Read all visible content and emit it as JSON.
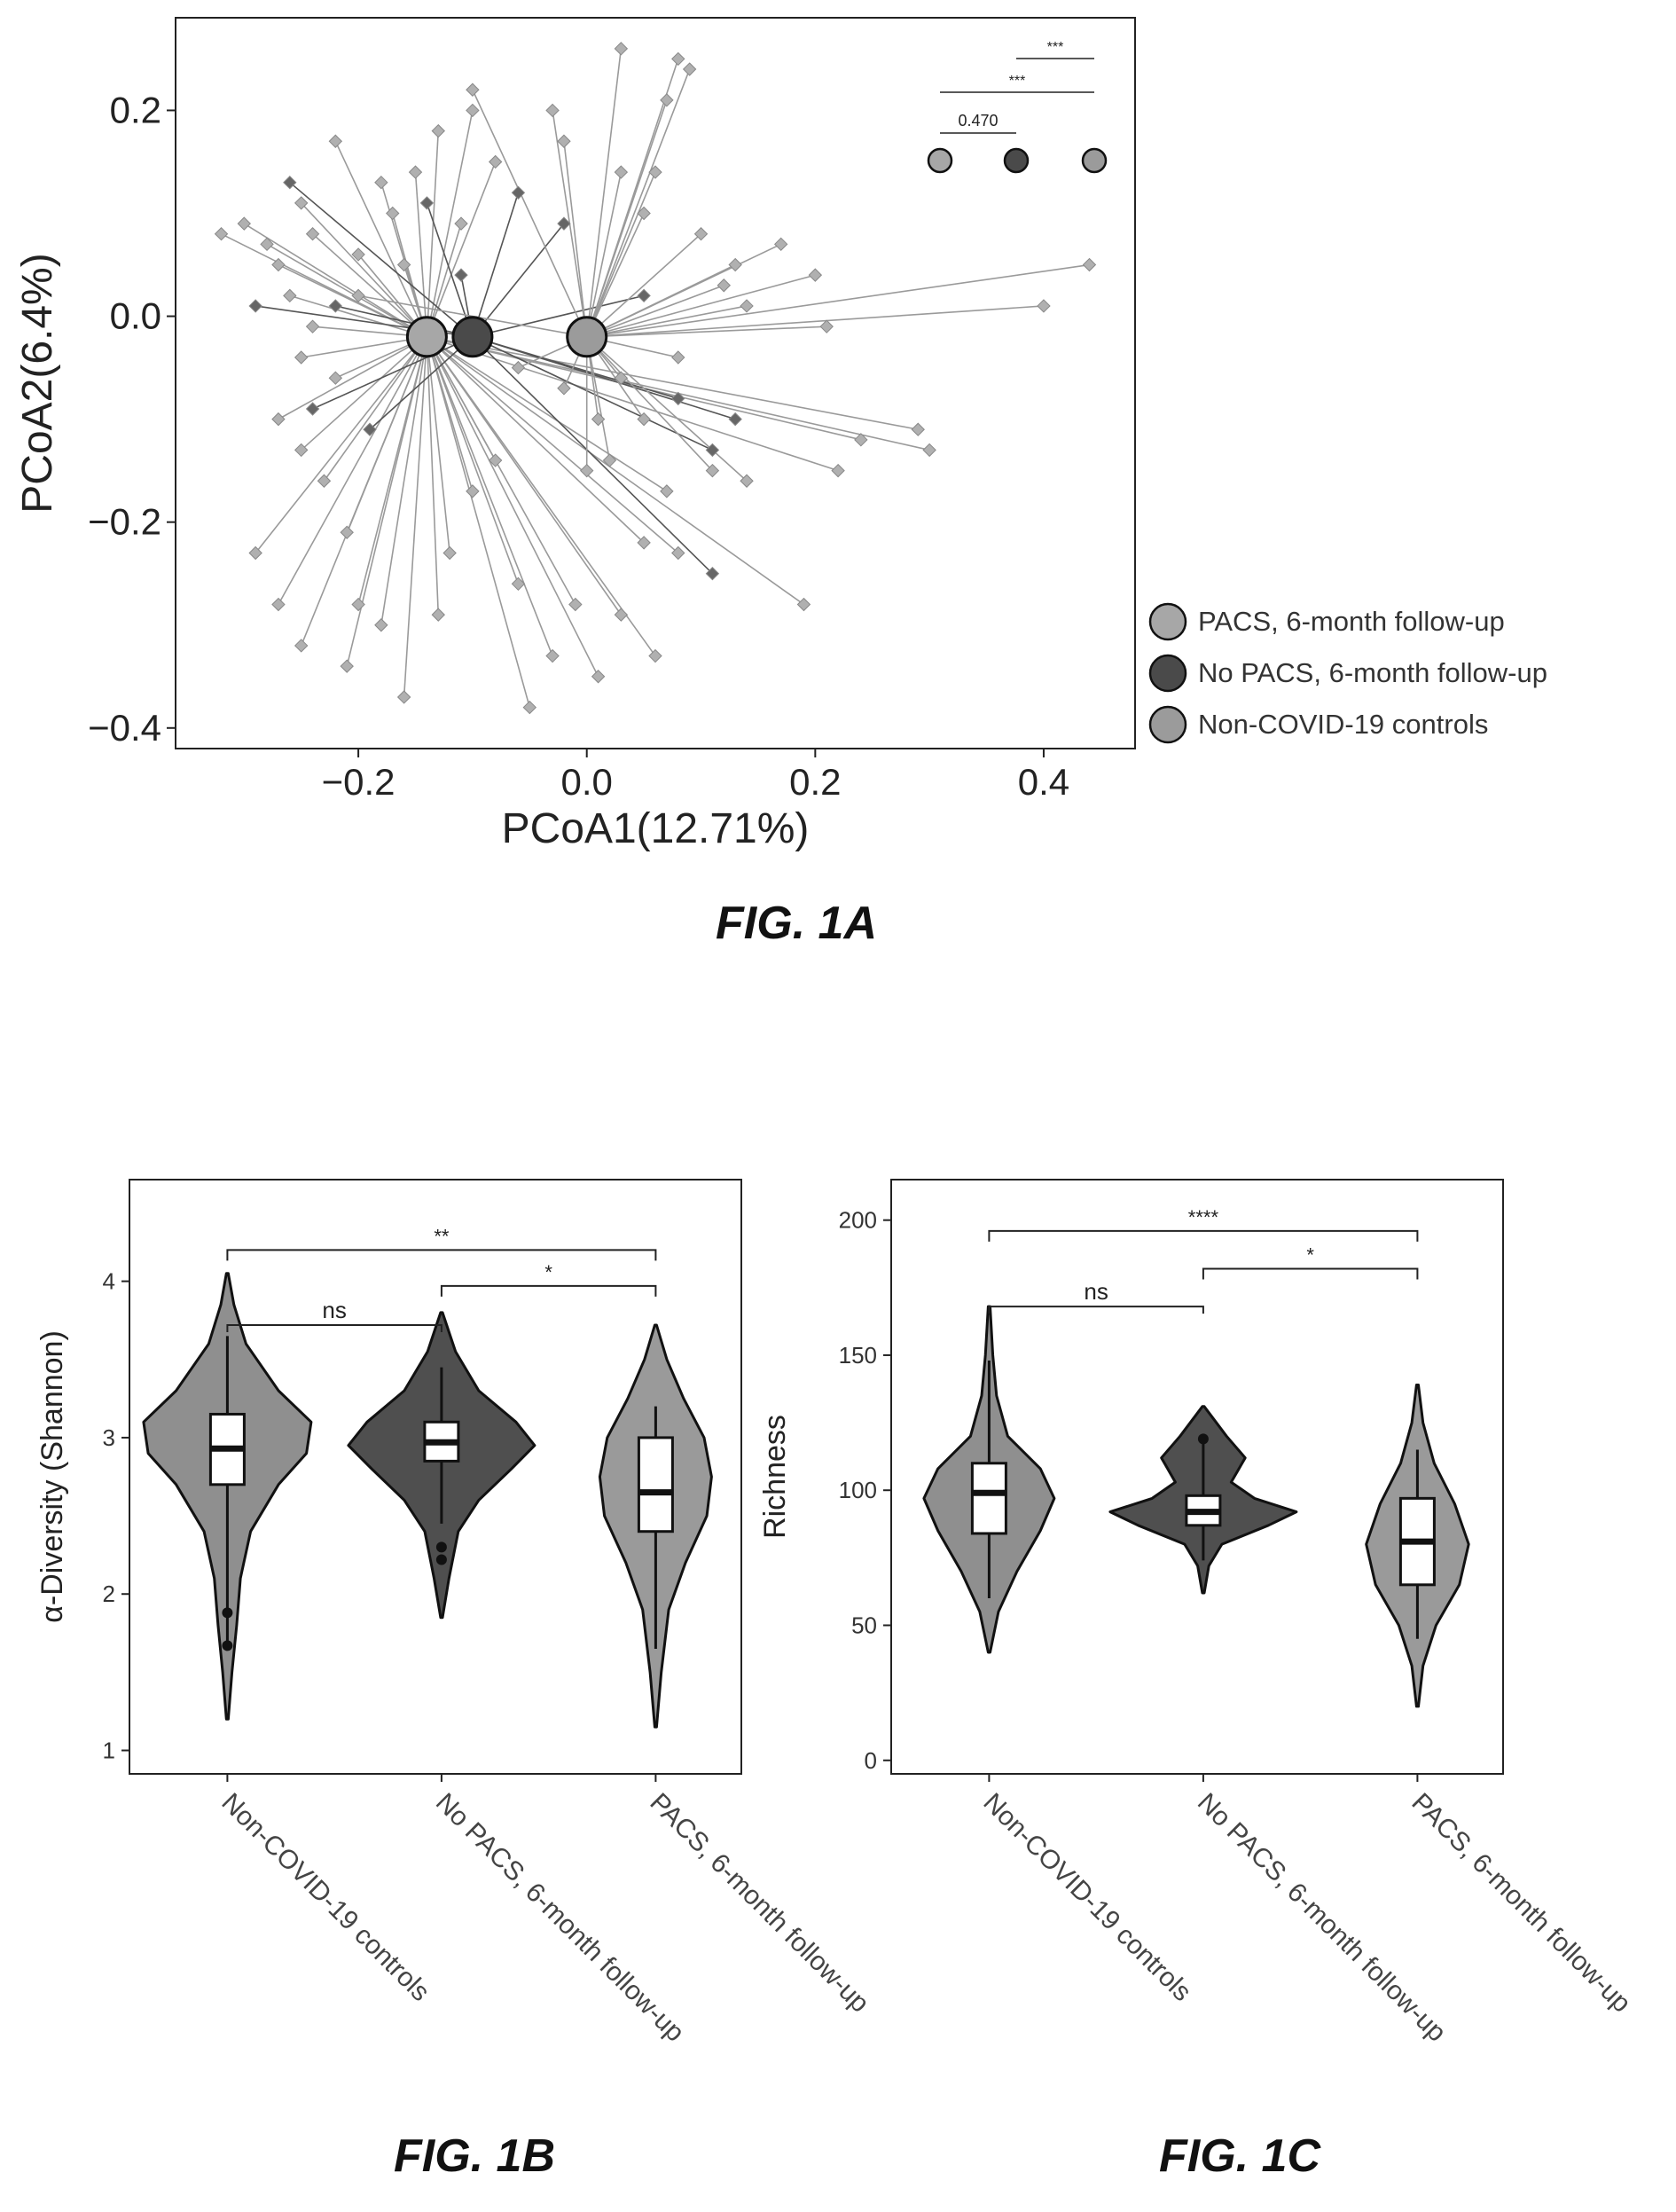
{
  "colors": {
    "pacs": "#a7a7a7",
    "no_pacs": "#4a4a4a",
    "controls": "#9b9b9b",
    "point": "#b0b0b0",
    "segment": "#9a9a9a",
    "axis": "#222222",
    "box": "#ffffff"
  },
  "figure_labels": {
    "a": "FIG. 1A",
    "b": "FIG. 1B",
    "c": "FIG. 1C"
  },
  "chart_data": [
    {
      "id": "fig1a",
      "type": "scatter",
      "xlabel": "PCoA1(12.71%)",
      "ylabel": "PCoA2(6.4%)",
      "xlim": [
        -0.36,
        0.48
      ],
      "ylim": [
        -0.42,
        0.29
      ],
      "xticks": [
        -0.2,
        0.0,
        0.2,
        0.4
      ],
      "xtick_labels": [
        "−0.2",
        "0.0",
        "0.2",
        "0.4"
      ],
      "yticks": [
        -0.4,
        -0.2,
        0.0,
        0.2
      ],
      "ytick_labels": [
        "−0.4",
        "−0.2",
        "0.0",
        "0.2"
      ],
      "grid": false,
      "legend_position": "right-bottom",
      "series": [
        {
          "name": "PACS, 6-month follow-up",
          "centroid": [
            -0.14,
            -0.02
          ],
          "points": [
            [
              -0.32,
              0.08
            ],
            [
              -0.3,
              0.09
            ],
            [
              -0.28,
              0.07
            ],
            [
              -0.27,
              0.05
            ],
            [
              -0.25,
              0.11
            ],
            [
              -0.24,
              0.08
            ],
            [
              -0.26,
              0.02
            ],
            [
              -0.24,
              -0.01
            ],
            [
              -0.25,
              -0.04
            ],
            [
              -0.22,
              -0.06
            ],
            [
              -0.27,
              -0.1
            ],
            [
              -0.25,
              -0.13
            ],
            [
              -0.23,
              -0.16
            ],
            [
              -0.21,
              -0.21
            ],
            [
              -0.29,
              -0.23
            ],
            [
              -0.27,
              -0.28
            ],
            [
              -0.25,
              -0.32
            ],
            [
              -0.21,
              -0.34
            ],
            [
              -0.2,
              -0.28
            ],
            [
              -0.18,
              -0.3
            ],
            [
              -0.16,
              -0.37
            ],
            [
              -0.13,
              -0.29
            ],
            [
              -0.12,
              -0.23
            ],
            [
              -0.1,
              -0.17
            ],
            [
              -0.08,
              -0.14
            ],
            [
              -0.06,
              -0.26
            ],
            [
              -0.05,
              -0.38
            ],
            [
              -0.03,
              -0.33
            ],
            [
              -0.01,
              -0.28
            ],
            [
              0.01,
              -0.35
            ],
            [
              0.03,
              -0.29
            ],
            [
              0.05,
              -0.22
            ],
            [
              0.07,
              -0.17
            ],
            [
              0.08,
              -0.23
            ],
            [
              0.06,
              -0.33
            ],
            [
              0.19,
              -0.28
            ],
            [
              0.22,
              -0.15
            ],
            [
              0.24,
              -0.12
            ],
            [
              0.29,
              -0.11
            ],
            [
              0.3,
              -0.13
            ],
            [
              -0.15,
              0.14
            ],
            [
              -0.13,
              0.18
            ],
            [
              -0.1,
              0.2
            ],
            [
              -0.08,
              0.15
            ],
            [
              -0.11,
              0.09
            ],
            [
              -0.18,
              0.13
            ],
            [
              -0.2,
              0.06
            ],
            [
              -0.16,
              0.05
            ],
            [
              -0.22,
              0.17
            ],
            [
              -0.17,
              0.1
            ]
          ]
        },
        {
          "name": "No PACS, 6-month follow-up",
          "centroid": [
            -0.1,
            -0.02
          ],
          "points": [
            [
              -0.26,
              0.13
            ],
            [
              -0.22,
              0.01
            ],
            [
              -0.29,
              0.01
            ],
            [
              -0.24,
              -0.09
            ],
            [
              -0.19,
              -0.11
            ],
            [
              -0.14,
              0.11
            ],
            [
              -0.11,
              0.04
            ],
            [
              0.05,
              0.02
            ],
            [
              0.11,
              -0.13
            ],
            [
              0.08,
              -0.08
            ],
            [
              0.13,
              -0.1
            ],
            [
              0.11,
              -0.25
            ],
            [
              -0.06,
              0.12
            ],
            [
              -0.02,
              0.09
            ]
          ]
        },
        {
          "name": "Non-COVID-19 controls",
          "centroid": [
            0.0,
            -0.02
          ],
          "points": [
            [
              0.03,
              0.26
            ],
            [
              0.08,
              0.25
            ],
            [
              0.09,
              0.24
            ],
            [
              0.07,
              0.21
            ],
            [
              -0.1,
              0.22
            ],
            [
              -0.03,
              0.2
            ],
            [
              -0.02,
              0.17
            ],
            [
              0.03,
              0.14
            ],
            [
              0.06,
              0.14
            ],
            [
              0.05,
              0.1
            ],
            [
              0.1,
              0.08
            ],
            [
              0.13,
              0.05
            ],
            [
              0.12,
              0.03
            ],
            [
              0.14,
              0.01
            ],
            [
              0.17,
              0.07
            ],
            [
              0.2,
              0.04
            ],
            [
              0.21,
              -0.01
            ],
            [
              0.44,
              0.05
            ],
            [
              0.4,
              0.01
            ],
            [
              0.08,
              -0.04
            ],
            [
              0.03,
              -0.06
            ],
            [
              0.05,
              -0.1
            ],
            [
              0.01,
              -0.1
            ],
            [
              -0.02,
              -0.07
            ],
            [
              0.0,
              -0.15
            ],
            [
              0.02,
              -0.14
            ],
            [
              -0.06,
              -0.05
            ],
            [
              0.11,
              -0.15
            ],
            [
              0.14,
              -0.16
            ],
            [
              -0.2,
              0.02
            ]
          ]
        }
      ],
      "significance": [
        {
          "groups": [
            0,
            1
          ],
          "label": "0.470"
        },
        {
          "groups": [
            0,
            2
          ],
          "label": "***"
        },
        {
          "groups": [
            1,
            2
          ],
          "label": "***"
        }
      ]
    },
    {
      "id": "fig1b",
      "type": "violin",
      "ylabel": "α-Diversity (Shannon)",
      "xlabel": "",
      "ylim": [
        0.85,
        4.65
      ],
      "yticks": [
        1,
        2,
        3,
        4
      ],
      "categories": [
        "Non-COVID-19 controls",
        "No PACS, 6-month follow-up",
        "PACS, 6-month follow-up"
      ],
      "groups": [
        {
          "min": 1.2,
          "max": 4.05,
          "density": [
            [
              1.2,
              0.01
            ],
            [
              1.5,
              0.05
            ],
            [
              1.8,
              0.1
            ],
            [
              2.1,
              0.14
            ],
            [
              2.4,
              0.25
            ],
            [
              2.7,
              0.55
            ],
            [
              2.9,
              0.85
            ],
            [
              3.1,
              0.9
            ],
            [
              3.3,
              0.55
            ],
            [
              3.6,
              0.2
            ],
            [
              3.85,
              0.07
            ],
            [
              4.05,
              0.01
            ]
          ],
          "q1": 2.7,
          "median": 2.93,
          "q3": 3.15,
          "whisker": [
            1.7,
            3.65
          ],
          "outliers": [
            1.88,
            1.67
          ]
        },
        {
          "min": 1.85,
          "max": 3.8,
          "density": [
            [
              1.85,
              0.01
            ],
            [
              2.1,
              0.08
            ],
            [
              2.4,
              0.18
            ],
            [
              2.6,
              0.4
            ],
            [
              2.8,
              0.75
            ],
            [
              2.95,
              1.0
            ],
            [
              3.1,
              0.8
            ],
            [
              3.3,
              0.4
            ],
            [
              3.55,
              0.15
            ],
            [
              3.8,
              0.01
            ]
          ],
          "q1": 2.85,
          "median": 2.97,
          "q3": 3.1,
          "whisker": [
            2.45,
            3.45
          ],
          "outliers": [
            2.3,
            2.22
          ]
        },
        {
          "min": 1.15,
          "max": 3.72,
          "density": [
            [
              1.15,
              0.01
            ],
            [
              1.5,
              0.06
            ],
            [
              1.9,
              0.14
            ],
            [
              2.2,
              0.32
            ],
            [
              2.5,
              0.55
            ],
            [
              2.75,
              0.6
            ],
            [
              3.0,
              0.52
            ],
            [
              3.25,
              0.3
            ],
            [
              3.5,
              0.12
            ],
            [
              3.72,
              0.01
            ]
          ],
          "q1": 2.4,
          "median": 2.65,
          "q3": 3.0,
          "whisker": [
            1.65,
            3.2
          ],
          "outliers": []
        }
      ],
      "comparisons": [
        {
          "groups": [
            0,
            1
          ],
          "label": "ns",
          "y": 3.72
        },
        {
          "groups": [
            1,
            2
          ],
          "label": "*",
          "y": 3.97
        },
        {
          "groups": [
            0,
            2
          ],
          "label": "**",
          "y": 4.2
        }
      ]
    },
    {
      "id": "fig1c",
      "type": "violin",
      "ylabel": "Richness",
      "xlabel": "",
      "ylim": [
        -5,
        215
      ],
      "yticks": [
        0,
        50,
        100,
        150,
        200
      ],
      "categories": [
        "Non-COVID-19 controls",
        "No PACS, 6-month follow-up",
        "PACS, 6-month follow-up"
      ],
      "groups": [
        {
          "min": 40,
          "max": 168,
          "density": [
            [
              40,
              0.01
            ],
            [
              55,
              0.1
            ],
            [
              70,
              0.3
            ],
            [
              85,
              0.55
            ],
            [
              97,
              0.7
            ],
            [
              108,
              0.55
            ],
            [
              120,
              0.2
            ],
            [
              135,
              0.08
            ],
            [
              150,
              0.04
            ],
            [
              168,
              0.01
            ]
          ],
          "q1": 84,
          "median": 99,
          "q3": 110,
          "whisker": [
            60,
            148
          ],
          "outliers": []
        },
        {
          "min": 62,
          "max": 131,
          "density": [
            [
              62,
              0.01
            ],
            [
              72,
              0.06
            ],
            [
              80,
              0.2
            ],
            [
              87,
              0.7
            ],
            [
              92,
              1.0
            ],
            [
              97,
              0.55
            ],
            [
              103,
              0.3
            ],
            [
              112,
              0.45
            ],
            [
              120,
              0.25
            ],
            [
              131,
              0.01
            ]
          ],
          "q1": 87,
          "median": 92,
          "q3": 98,
          "whisker": [
            74,
            120
          ],
          "outliers": [
            119
          ]
        },
        {
          "min": 20,
          "max": 139,
          "density": [
            [
              20,
              0.01
            ],
            [
              35,
              0.06
            ],
            [
              50,
              0.2
            ],
            [
              65,
              0.45
            ],
            [
              80,
              0.55
            ],
            [
              95,
              0.4
            ],
            [
              110,
              0.18
            ],
            [
              125,
              0.06
            ],
            [
              139,
              0.01
            ]
          ],
          "q1": 65,
          "median": 81,
          "q3": 97,
          "whisker": [
            45,
            115
          ],
          "outliers": []
        }
      ],
      "comparisons": [
        {
          "groups": [
            0,
            1
          ],
          "label": "ns",
          "y": 168
        },
        {
          "groups": [
            1,
            2
          ],
          "label": "*",
          "y": 182
        },
        {
          "groups": [
            0,
            2
          ],
          "label": "****",
          "y": 196
        }
      ]
    }
  ]
}
